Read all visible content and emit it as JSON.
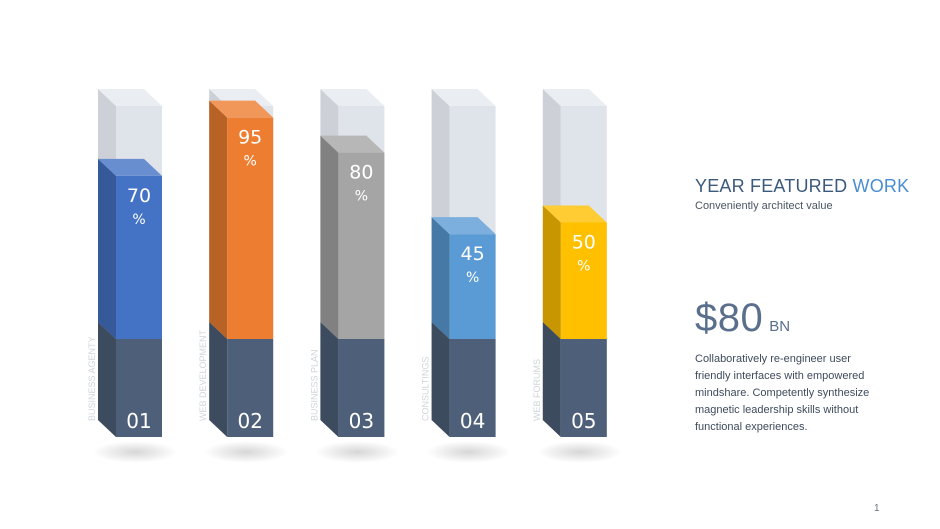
{
  "chart_data": {
    "type": "bar",
    "style": "3d-vertical-columns",
    "ylim": [
      0,
      100
    ],
    "categories": [
      "BUSINESS AGENTY",
      "WEB DEVELOPMENT",
      "BUSINESS PLAN",
      "CONSULTINGS",
      "WEB FORUMS"
    ],
    "numbers": [
      "01",
      "02",
      "03",
      "04",
      "05"
    ],
    "values": [
      70,
      95,
      80,
      45,
      50
    ],
    "value_suffix": "%",
    "colors": [
      "#4472c4",
      "#ed7d31",
      "#a5a5a5",
      "#5b9bd5",
      "#ffc000"
    ],
    "base_color": "#4e6079",
    "track_color": "#dfe3ea"
  },
  "side": {
    "title_main": "YEAR FEATURED ",
    "title_accent": "WORK",
    "subtitle": "Conveniently architect value",
    "amount": "$80",
    "amount_unit": "BN",
    "description": "Collaboratively re-engineer user friendly interfaces with empowered mindshare. Competently synthesize magnetic leadership skills without functional experiences."
  },
  "page_number": "1"
}
